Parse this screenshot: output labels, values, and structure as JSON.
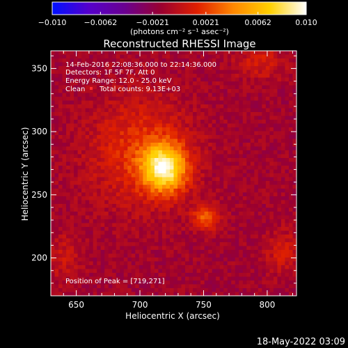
{
  "chart_data": {
    "type": "heatmap",
    "title": "Reconstructed RHESSI Image",
    "xlabel": "Heliocentric X (arcsec)",
    "ylabel": "Heliocentric Y (arcsec)",
    "xlim": [
      630,
      823
    ],
    "ylim": [
      170,
      364
    ],
    "x_ticks": [
      650,
      700,
      750,
      800
    ],
    "y_ticks": [
      200,
      250,
      300,
      350
    ],
    "colorbar": {
      "label": "(photons cm⁻² s⁻¹ asec⁻²)",
      "min": -0.01,
      "max": 0.01,
      "tick_labels": [
        "−0.010",
        "−0.0062",
        "−0.0021",
        "0.0021",
        "0.0062",
        "0.010"
      ],
      "tick_values": [
        -0.01,
        -0.0062,
        -0.0021,
        0.0021,
        0.0062,
        0.01
      ],
      "stops": [
        "#0010ff",
        "#5500cc",
        "#6a0090",
        "#9a0030",
        "#e02000",
        "#ff8800",
        "#ffd000",
        "#ffffff"
      ]
    },
    "annotations": [
      "14-Feb-2016 22:08:36.000 to 22:14:36.000",
      "Detectors: 1F 5F 7F, Att 0",
      "Energy Range: 12.0 - 25.0 keV",
      "Clean",
      "Total counts: 9.13E+03"
    ],
    "peak": {
      "label": "Position of Peak = [719,271]",
      "x": 719,
      "y": 271
    },
    "sources": [
      {
        "x": 719,
        "y": 271,
        "sx": 12,
        "sy": 13,
        "amp": 0.0095
      },
      {
        "x": 700,
        "y": 285,
        "sx": 28,
        "sy": 30,
        "amp": 0.003
      },
      {
        "x": 752,
        "y": 232,
        "sx": 8,
        "sy": 7,
        "amp": 0.004
      },
      {
        "x": 795,
        "y": 355,
        "sx": 14,
        "sy": 10,
        "amp": 0.002
      },
      {
        "x": 640,
        "y": 200,
        "sx": 10,
        "sy": 14,
        "amp": 0.0015
      },
      {
        "x": 812,
        "y": 205,
        "sx": 9,
        "sy": 12,
        "amp": 0.002
      }
    ]
  },
  "footer": {
    "timestamp": "18-May-2022 03:09"
  }
}
